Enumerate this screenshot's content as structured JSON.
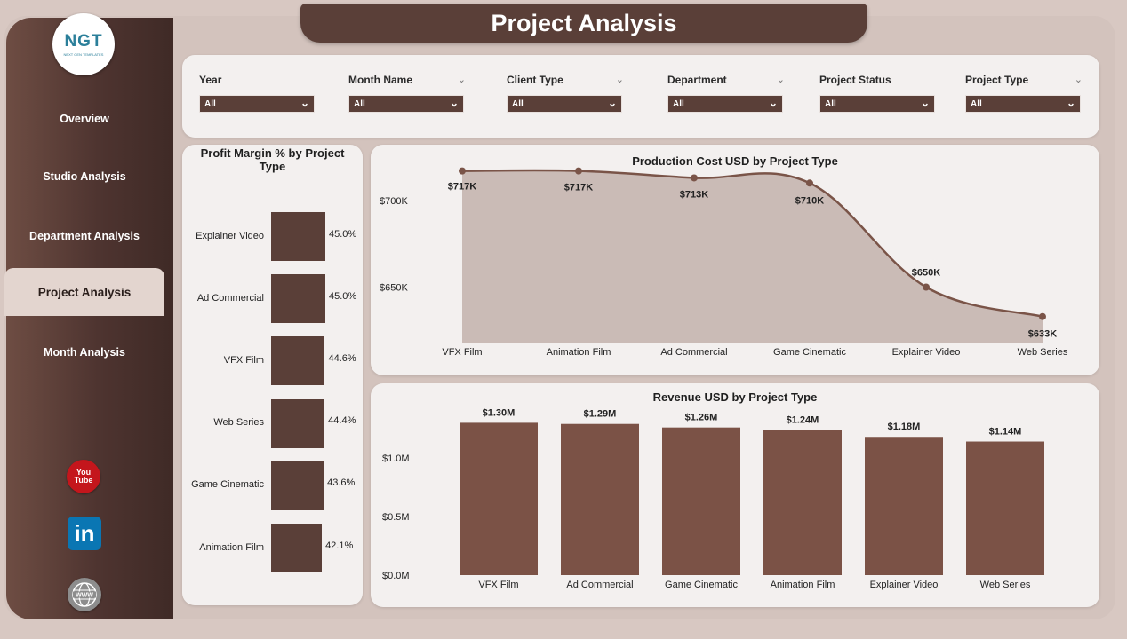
{
  "header": {
    "title": "Project Analysis"
  },
  "logo": {
    "mark": "NGT",
    "tagline": "NEXT GEN TEMPLATES"
  },
  "sidebar": {
    "items": [
      {
        "label": "Overview",
        "active": false
      },
      {
        "label": "Studio Analysis",
        "active": false
      },
      {
        "label": "Department Analysis",
        "active": false
      },
      {
        "label": "Project Analysis",
        "active": true
      },
      {
        "label": "Month Analysis",
        "active": false
      }
    ],
    "social": {
      "youtube_line1": "You",
      "youtube_line2": "Tube",
      "linkedin": "in",
      "web": "WWW"
    }
  },
  "filters": [
    {
      "label": "Year",
      "value": "All",
      "has_chevron": false
    },
    {
      "label": "Month Name",
      "value": "All",
      "has_chevron": true
    },
    {
      "label": "Client Type",
      "value": "All",
      "has_chevron": true
    },
    {
      "label": "Department",
      "value": "All",
      "has_chevron": true
    },
    {
      "label": "Project Status",
      "value": "All",
      "has_chevron": true
    },
    {
      "label": "Project Type",
      "value": "All",
      "has_chevron": true
    }
  ],
  "colors": {
    "accent": "#5a3f38",
    "area_fill": "#c2b1ab",
    "bar": "#7b5246"
  },
  "chart_data": [
    {
      "type": "bar",
      "orientation": "horizontal",
      "title": "Profit Margin % by Project Type",
      "categories": [
        "Explainer Video",
        "Ad Commercial",
        "VFX Film",
        "Web Series",
        "Game Cinematic",
        "Animation Film"
      ],
      "values": [
        45.0,
        45.0,
        44.6,
        44.4,
        43.6,
        42.1
      ],
      "labels": [
        "45.0%",
        "45.0%",
        "44.6%",
        "44.4%",
        "43.6%",
        "42.1%"
      ],
      "unit": "%"
    },
    {
      "type": "area",
      "title": "Production Cost USD by Project Type",
      "categories": [
        "VFX Film",
        "Animation Film",
        "Ad Commercial",
        "Game Cinematic",
        "Explainer Video",
        "Web Series"
      ],
      "values": [
        717000,
        717000,
        713000,
        710000,
        650000,
        633000
      ],
      "labels": [
        "$717K",
        "$717K",
        "$713K",
        "$710K",
        "$650K",
        "$633K"
      ],
      "yticks": [
        "$650K",
        "$700K"
      ],
      "ytick_values": [
        650000,
        700000
      ],
      "ylim": [
        618000,
        725000
      ]
    },
    {
      "type": "bar",
      "title": "Revenue USD by Project Type",
      "categories": [
        "VFX Film",
        "Ad Commercial",
        "Game Cinematic",
        "Animation Film",
        "Explainer Video",
        "Web Series"
      ],
      "values": [
        1300000,
        1290000,
        1260000,
        1240000,
        1180000,
        1140000
      ],
      "labels": [
        "$1.30M",
        "$1.29M",
        "$1.26M",
        "$1.24M",
        "$1.18M",
        "$1.14M"
      ],
      "yticks": [
        "$0.0M",
        "$0.5M",
        "$1.0M"
      ],
      "ytick_values": [
        0,
        500000,
        1000000
      ],
      "ylim": [
        0,
        1500000
      ]
    }
  ]
}
